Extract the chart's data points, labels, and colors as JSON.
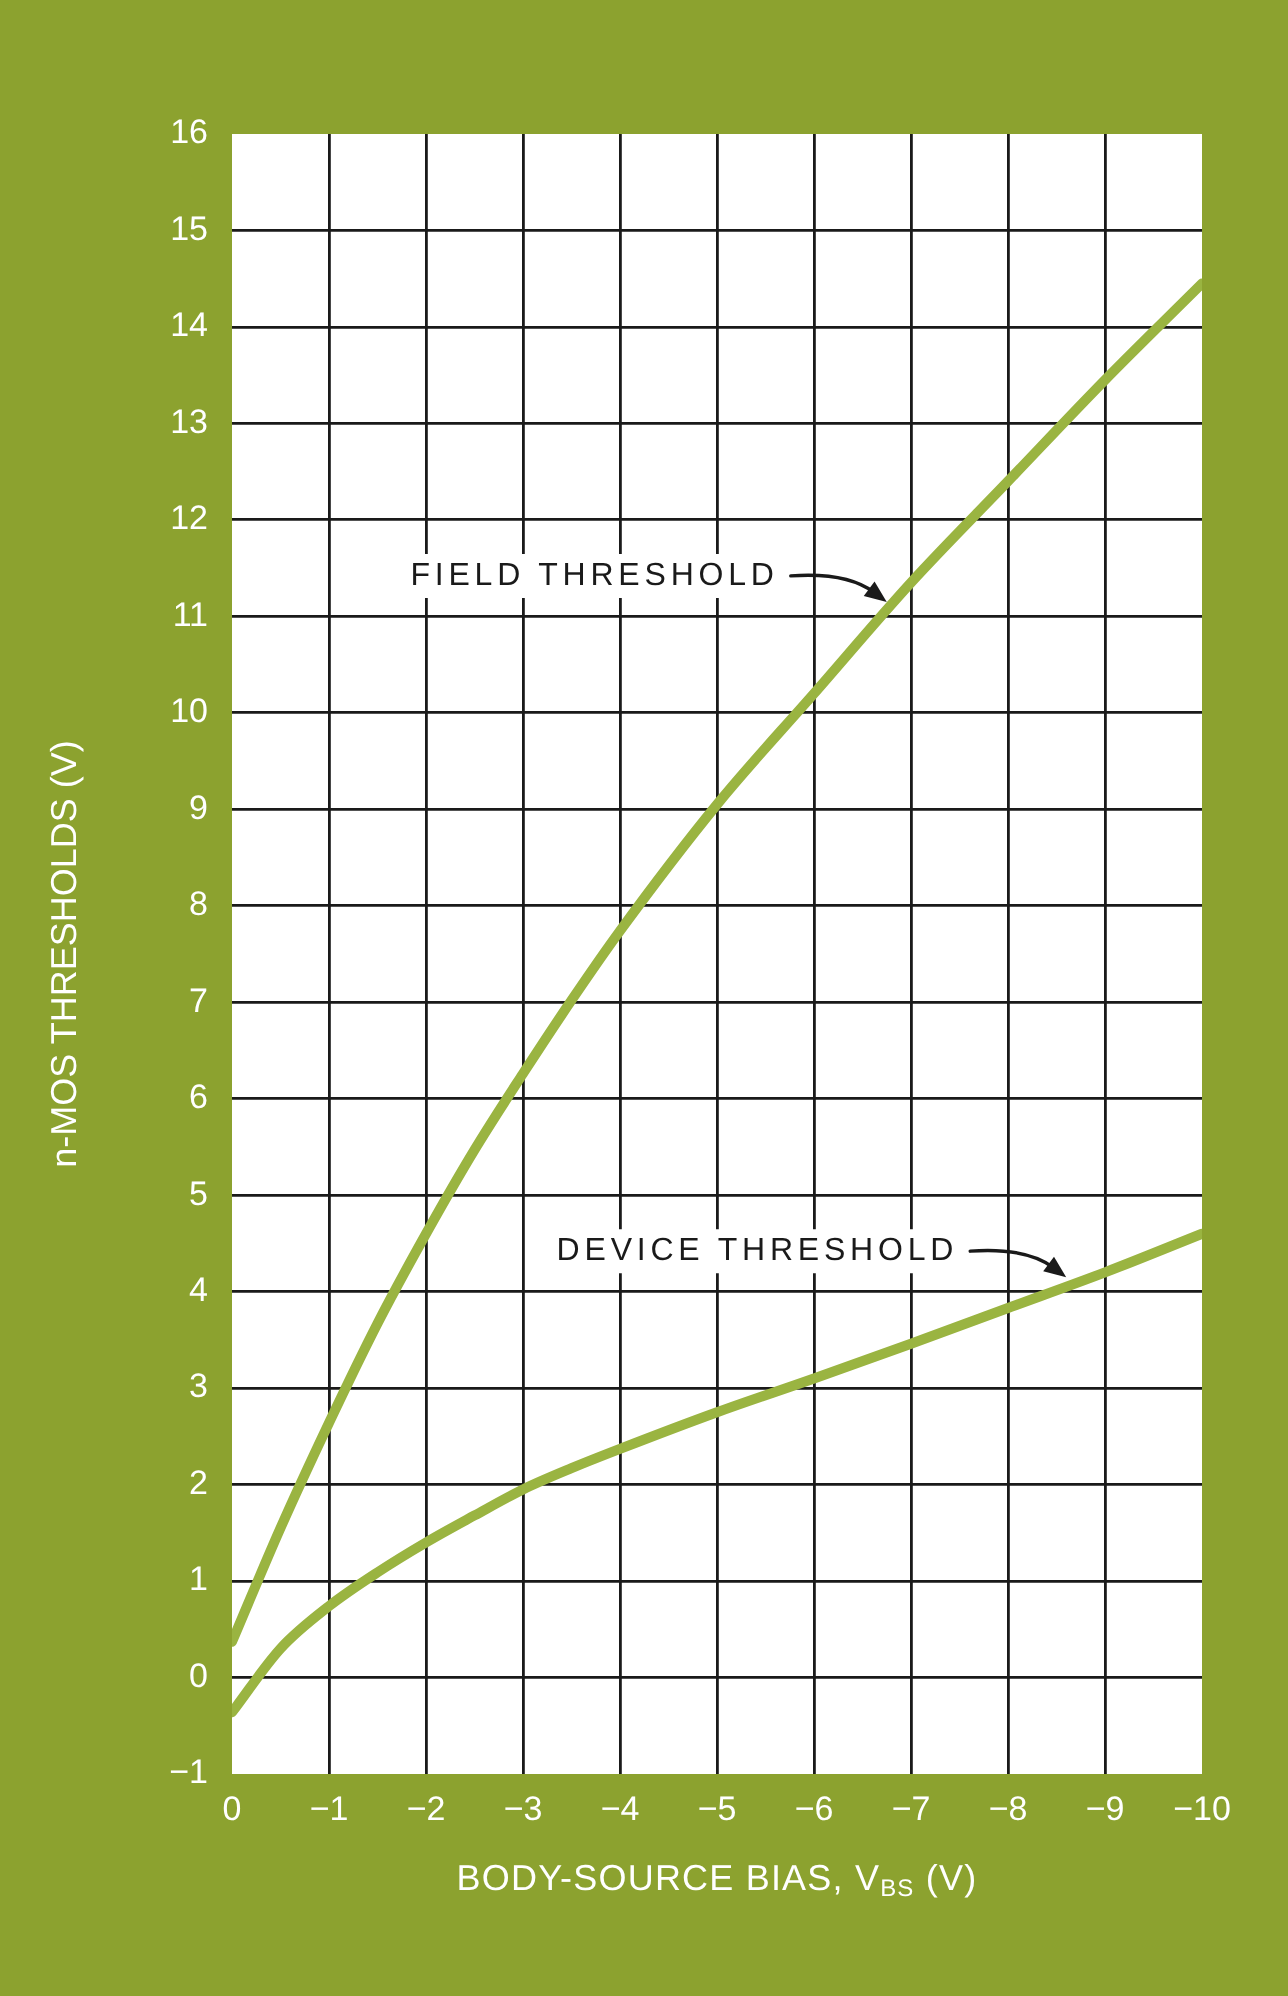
{
  "chart_data": {
    "type": "line",
    "x": [
      0,
      -0.5,
      -1,
      -1.5,
      -2,
      -2.5,
      -3,
      -3.5,
      -4,
      -5,
      -6,
      -7,
      -8,
      -9,
      -10
    ],
    "series": [
      {
        "color": "#9ab441",
        "values": [
          0.37,
          1.55,
          2.64,
          3.67,
          4.6,
          5.47,
          6.26,
          7.02,
          7.74,
          9.05,
          10.2,
          11.35,
          12.4,
          13.45,
          14.45
        ]
      },
      {
        "color": "#9ab441",
        "values": [
          -0.36,
          0.3,
          0.74,
          1.09,
          1.4,
          1.68,
          1.95,
          2.17,
          2.37,
          2.75,
          3.1,
          3.46,
          3.83,
          4.2,
          4.6
        ]
      }
    ],
    "xlabel": "BODY-SOURCE BIAS, V$_{BS}$ (V)",
    "ylabel": "n-MOS THRESHOLDS (V)",
    "xlim": [
      0,
      -10
    ],
    "ylim": [
      -1,
      16
    ],
    "xticks": [
      0,
      {
        "value": -1,
        "label": "−1"
      },
      {
        "value": -2,
        "label": "−2"
      },
      {
        "value": -3,
        "label": "−3"
      },
      {
        "value": -4,
        "label": "−4"
      },
      {
        "value": -5,
        "label": "−5"
      },
      {
        "value": -6,
        "label": "−6"
      },
      {
        "value": -7,
        "label": "−7"
      },
      {
        "value": -8,
        "label": "−8"
      },
      {
        "value": -9,
        "label": "−9"
      },
      {
        "value": -10,
        "label": "−10"
      }
    ],
    "yticks": [
      {
        "value": -1,
        "label": "−1"
      },
      0,
      1,
      2,
      3,
      4,
      5,
      6,
      7,
      8,
      9,
      10,
      11,
      12,
      13,
      14,
      15,
      16
    ],
    "grid": true,
    "marker": "none",
    "line_style": "solid",
    "annotations": [
      {
        "text": "FIELD THRESHOLD",
        "x": -6.75,
        "y": 11.15
      },
      {
        "text": "DEVICE THRESHOLD",
        "x": -8.6,
        "y": 4.15
      }
    ]
  }
}
